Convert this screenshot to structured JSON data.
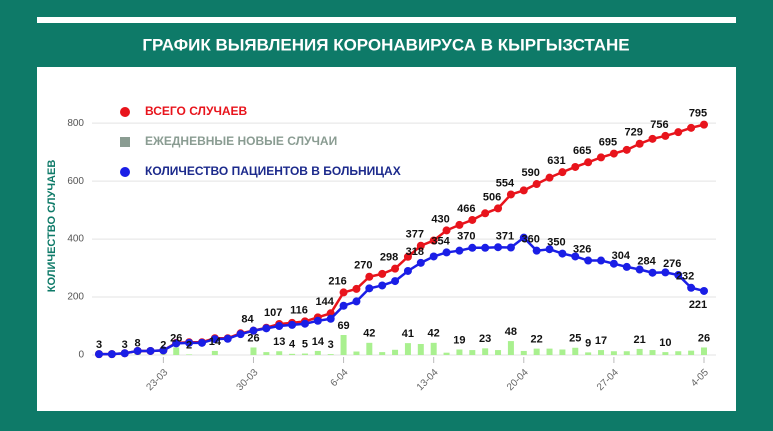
{
  "chart_data": {
    "type": "combo",
    "title": "ГРАФИК ВЫЯВЛЕНИЯ КОРОНАВИРУСА В КЫРГЫЗСТАНЕ",
    "y_label": "КОЛИЧЕСТВО СЛУЧАЕВ",
    "categories": [
      null,
      null,
      null,
      null,
      null,
      "23-03",
      null,
      null,
      null,
      null,
      null,
      null,
      "30-03",
      null,
      null,
      null,
      null,
      null,
      null,
      "6-04",
      null,
      null,
      null,
      null,
      null,
      null,
      "13-04",
      null,
      null,
      null,
      null,
      null,
      null,
      "20-04",
      null,
      null,
      null,
      null,
      null,
      null,
      "27-04",
      null,
      null,
      null,
      null,
      null,
      null,
      "4-05"
    ],
    "ylim": [
      0,
      880
    ],
    "yticks": [
      0,
      200,
      400,
      600,
      800
    ],
    "grid": true,
    "legend": "top-left",
    "series": [
      {
        "name": "ВСЕГО СЛУЧАЕВ",
        "type": "line",
        "color": "#e8141c",
        "legend_color": "#e8141c",
        "values": [
          3,
          3,
          6,
          14,
          14,
          16,
          42,
          44,
          44,
          58,
          58,
          75,
          84,
          94,
          107,
          111,
          116,
          130,
          144,
          216,
          228,
          270,
          280,
          298,
          339,
          377,
          395,
          430,
          449,
          466,
          489,
          506,
          554,
          568,
          590,
          612,
          631,
          649,
          665,
          682,
          695,
          708,
          729,
          746,
          756,
          769,
          784,
          795
        ],
        "value_labels": [
          null,
          null,
          null,
          null,
          null,
          null,
          null,
          null,
          null,
          null,
          null,
          null,
          "84",
          null,
          "107",
          null,
          "116",
          null,
          "144",
          "216",
          null,
          "270",
          null,
          "298",
          null,
          "377",
          null,
          "430",
          null,
          "466",
          null,
          "506",
          "554",
          null,
          "590",
          null,
          "631",
          null,
          "665",
          null,
          "695",
          null,
          "729",
          null,
          "756",
          null,
          null,
          "795"
        ]
      },
      {
        "name": "ЕЖЕДНЕВНЫЕ НОВЫЕ СЛУЧАИ",
        "type": "bar",
        "color": "#a9f08f",
        "legend_color": "#8a9c92",
        "values": [
          3,
          0,
          3,
          8,
          0,
          2,
          26,
          2,
          0,
          14,
          0,
          0,
          26,
          10,
          13,
          4,
          5,
          14,
          3,
          69,
          12,
          42,
          10,
          18,
          41,
          38,
          42,
          8,
          19,
          17,
          23,
          17,
          48,
          14,
          22,
          22,
          19,
          25,
          9,
          17,
          13,
          13,
          21,
          17,
          10,
          13,
          15,
          26
        ],
        "value_labels": [
          "3",
          null,
          "3",
          "8",
          null,
          "2",
          "26",
          "2",
          null,
          "14",
          null,
          null,
          "26",
          null,
          "13",
          "4",
          "5",
          "14",
          "3",
          "69",
          null,
          "42",
          null,
          null,
          "41",
          null,
          "42",
          null,
          "19",
          null,
          "23",
          null,
          "48",
          null,
          "22",
          null,
          null,
          "25",
          "9",
          "17",
          null,
          null,
          "21",
          null,
          "10",
          null,
          null,
          "26"
        ]
      },
      {
        "name": "КОЛИЧЕСТВО ПАЦИЕНТОВ В БОЛЬНИЦАХ",
        "type": "line",
        "color": "#1a1ee6",
        "legend_color": "#1c2a8c",
        "values": [
          3,
          3,
          6,
          14,
          14,
          16,
          40,
          42,
          42,
          55,
          56,
          72,
          84,
          92,
          100,
          104,
          108,
          118,
          125,
          170,
          185,
          230,
          240,
          255,
          290,
          318,
          340,
          354,
          360,
          370,
          370,
          372,
          371,
          405,
          360,
          365,
          350,
          340,
          326,
          326,
          315,
          304,
          295,
          284,
          285,
          276,
          232,
          221
        ],
        "value_labels": [
          null,
          null,
          null,
          null,
          null,
          null,
          null,
          null,
          null,
          null,
          null,
          null,
          null,
          null,
          null,
          null,
          null,
          null,
          null,
          null,
          null,
          null,
          null,
          null,
          null,
          "318",
          null,
          "354",
          null,
          "370",
          null,
          null,
          "371",
          null,
          "360",
          null,
          "350",
          null,
          "326",
          null,
          null,
          "304",
          null,
          "284",
          null,
          "276",
          "232",
          "221"
        ]
      }
    ]
  }
}
